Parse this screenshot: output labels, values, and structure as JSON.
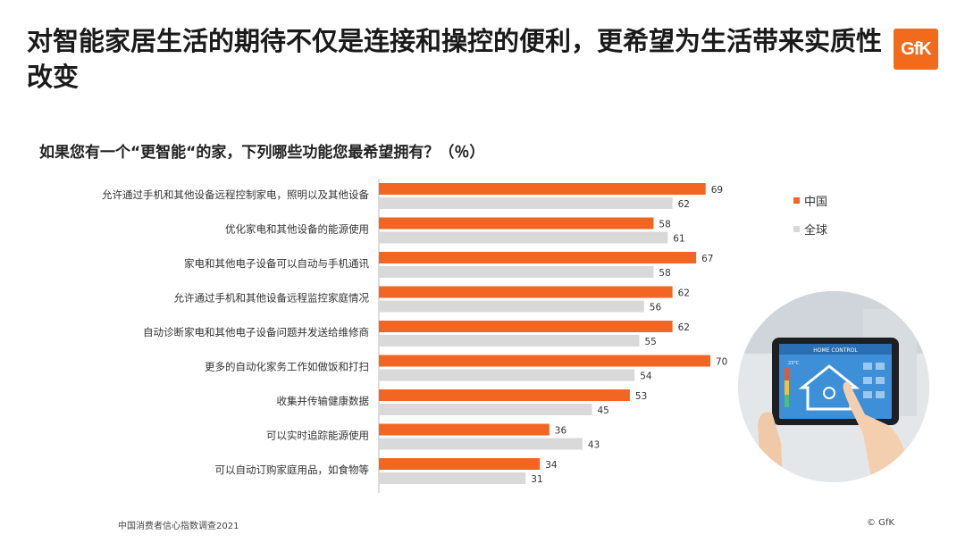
{
  "title": "对智能家居生活的期待不仅是连接和操控的便利，更希望为生活带来实质性改变",
  "logo_text": "GfK",
  "chart_data": {
    "type": "bar",
    "orientation": "horizontal",
    "title": "如果您有一个“更智能“的家，下列哪些功能您最希望拥有？（％）",
    "categories": [
      "允许通过手机和其他设备远程控制家电，照明以及其他设备",
      "优化家电和其他设备的能源使用",
      "家电和其他电子设备可以自动与手机通讯",
      "允许通过手机和其他设备远程监控家庭情况",
      "自动诊断家电和其他电子设备问题并发送给维修商",
      "更多的自动化家务工作如做饭和打扫",
      "收集并传输健康数据",
      "可以实时追踪能源使用",
      "可以自动订购家庭用品，如食物等"
    ],
    "series": [
      {
        "name": "中国",
        "color": "#f26522",
        "values": [
          69,
          58,
          67,
          62,
          62,
          70,
          53,
          36,
          34
        ]
      },
      {
        "name": "全球",
        "color": "#d9d9d9",
        "values": [
          62,
          61,
          58,
          56,
          55,
          54,
          45,
          43,
          31
        ]
      }
    ],
    "xlim": [
      0,
      100
    ],
    "grid": false,
    "legend": "right"
  },
  "image_labels": {
    "screen_title": "HOME CONTROL",
    "temperature": "23°C"
  },
  "footer": {
    "source": "中国消费者信心指数调查2021",
    "copyright": "© GfK"
  }
}
